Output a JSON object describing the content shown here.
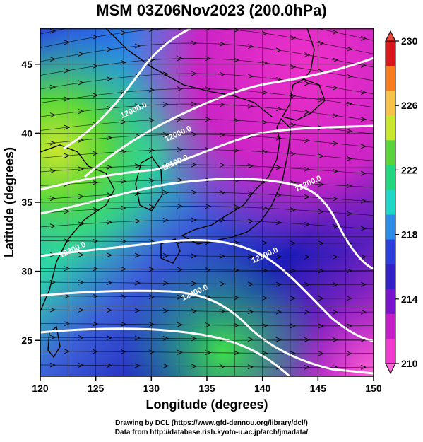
{
  "title": "MSM 03Z06Nov2023 (200.0hPa)",
  "xaxis": {
    "label": "Longitude (degrees)",
    "ticks": [
      "120",
      "125",
      "130",
      "135",
      "140",
      "145",
      "150"
    ],
    "values": [
      120,
      125,
      130,
      135,
      140,
      145,
      150
    ],
    "range": [
      120,
      150
    ]
  },
  "yaxis": {
    "label": "Latitude  (degrees)",
    "ticks": [
      "25",
      "30",
      "35",
      "40",
      "45"
    ],
    "values": [
      25,
      30,
      35,
      40,
      45
    ],
    "range": [
      22.4,
      47.6
    ]
  },
  "colorbar": {
    "labels": [
      "230",
      "226",
      "222",
      "218",
      "214",
      "210"
    ],
    "values": [
      230,
      226,
      222,
      218,
      214,
      210
    ],
    "colors": [
      "#d7191c",
      "#f57c1f",
      "#f6c14a",
      "#c9e62f",
      "#58d33a",
      "#22d57e",
      "#1fd5c8",
      "#2b8ce6",
      "#2c3fd8",
      "#3322c4",
      "#7a14c8",
      "#c21ec8",
      "#ee3bd0"
    ]
  },
  "contours": [
    {
      "label": "12000.0",
      "lon": 128.5,
      "lat": 41.5
    },
    {
      "label": "12000.0",
      "lon": 132.5,
      "lat": 39.8
    },
    {
      "label": "12100.0",
      "lon": 132.2,
      "lat": 37.7
    },
    {
      "label": "12200.0",
      "lon": 144.2,
      "lat": 36.2
    },
    {
      "label": "12300.0",
      "lon": 123.0,
      "lat": 31.4
    },
    {
      "label": "12300.0",
      "lon": 140.3,
      "lat": 31.0
    },
    {
      "label": "12400.0",
      "lon": 134.0,
      "lat": 28.3
    }
  ],
  "credits": [
    "Drawing by DCL (https://www.gfd-dennou.org/library/dcl/)",
    "Data from http://database.rish.kyoto-u.ac.jp/arch/jmadata/"
  ]
}
